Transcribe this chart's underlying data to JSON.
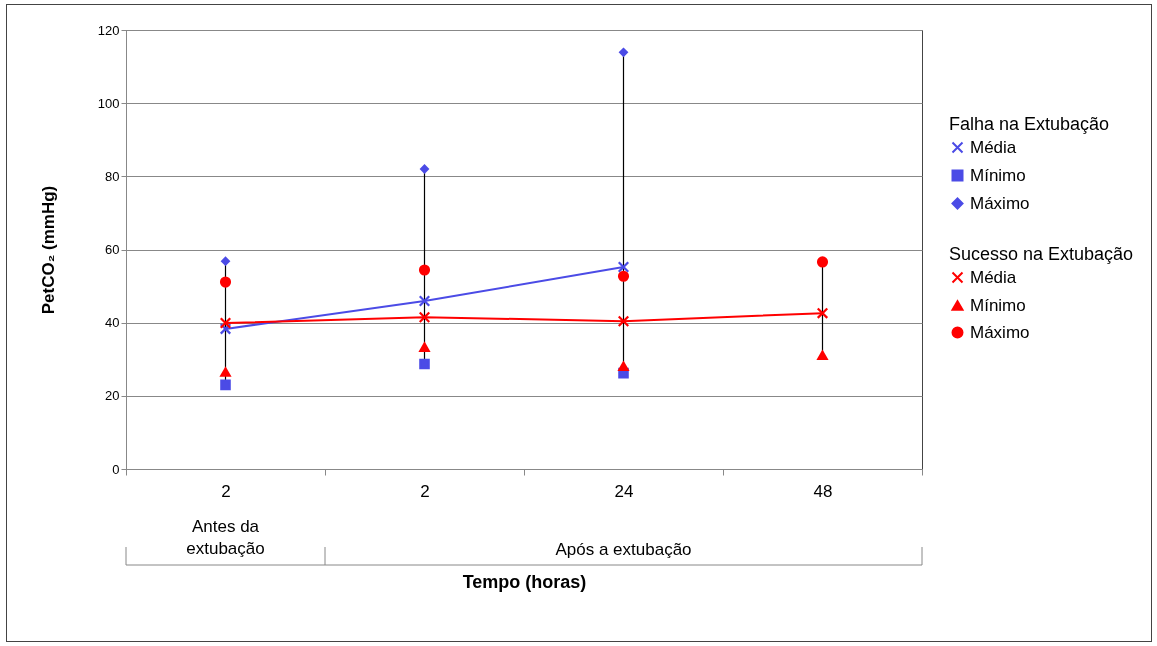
{
  "chart_data": {
    "type": "line",
    "xlabel": "Tempo (horas)",
    "ylabel": "PetCO₂ (mmHg)",
    "categories": [
      "2",
      "2",
      "24",
      "48"
    ],
    "legend_title": [
      "Falha na Extubação",
      "Sucesso na Extubação"
    ],
    "series": [
      {
        "name": "Média",
        "marker": "cross",
        "color": "#4b4be6",
        "values": [
          38.3,
          45.9,
          55.2,
          null
        ]
      },
      {
        "name": "Mínimo",
        "type": "scatter",
        "marker": "square",
        "color": "#4b4be6",
        "values": [
          23,
          28.7,
          26.2,
          null
        ]
      },
      {
        "name": "Máximo",
        "type": "scatter",
        "marker": "diamond",
        "color": "#4b4be6",
        "values": [
          56.8,
          82,
          113.9,
          null
        ]
      },
      {
        "name": "Média",
        "marker": "cross",
        "color": "#ff0000",
        "values": [
          39.9,
          41.5,
          40.4,
          42.6
        ]
      },
      {
        "name": "Mínimo",
        "type": "scatter",
        "marker": "triangle",
        "color": "#ff0000",
        "values": [
          26.5,
          33.3,
          28.1,
          31.1
        ]
      },
      {
        "name": "Máximo",
        "type": "scatter",
        "marker": "circle",
        "color": "#ff0000",
        "values": [
          51.1,
          54.4,
          52.7,
          56.6
        ]
      }
    ],
    "annotations": [
      "Antes da extubação",
      "Após a extubação"
    ],
    "ylim": [
      0,
      120
    ],
    "yticks": [
      0,
      20,
      40,
      60,
      80,
      100,
      120
    ],
    "grid": "y",
    "legend": "right"
  }
}
